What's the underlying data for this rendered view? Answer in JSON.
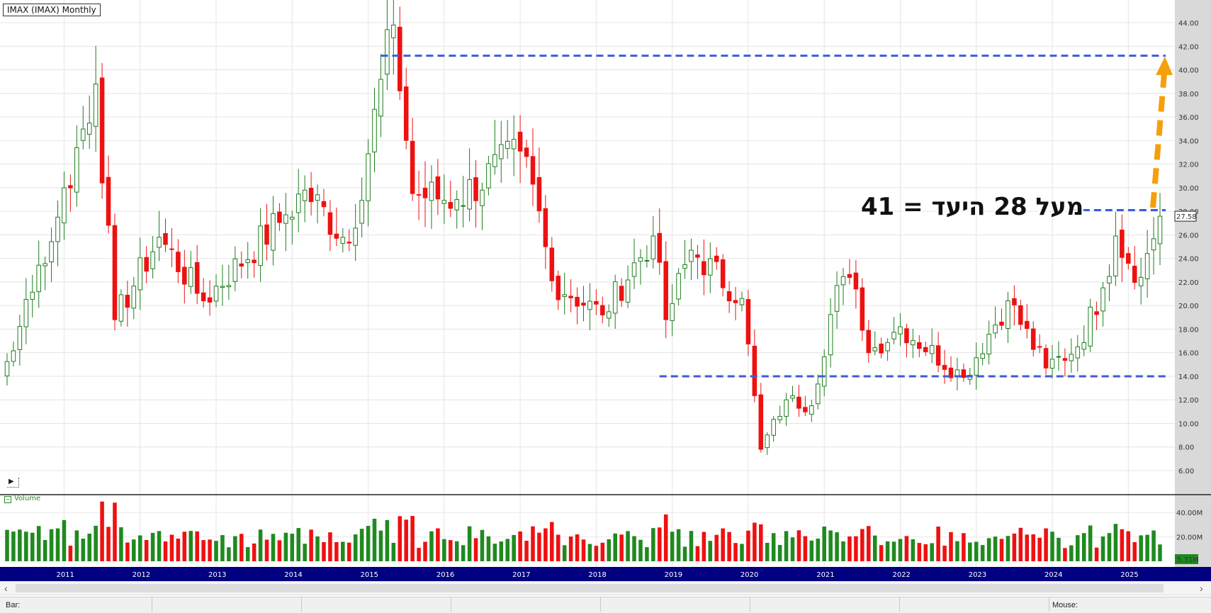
{
  "window": {
    "title": "IMAX (IMAX) Monthly",
    "volume_label": "Volume",
    "status_bar_label": "Bar:",
    "status_mouse_label": "Mouse:"
  },
  "annotation": {
    "text": "מעל 28 היעד = 41"
  },
  "colors": {
    "up": "#1e7d1e",
    "down": "#ee1111",
    "guide": "#3b5bdb",
    "target_arrow": "#f5a00a",
    "date_band": "#000080",
    "axis_panel": "#d9d9d9"
  },
  "chart_data": {
    "type": "candlestick",
    "interval": "monthly",
    "ylim": [
      6,
      45
    ],
    "y_ticks": [
      6,
      8,
      10,
      12,
      14,
      16,
      18,
      20,
      22,
      24,
      26,
      28,
      30,
      32,
      34,
      36,
      38,
      40,
      42,
      44
    ],
    "y_tick_labels": [
      "6.00",
      "8.00",
      "10.00",
      "12.00",
      "14.00",
      "16.00",
      "18.00",
      "20.00",
      "22.00",
      "24.00",
      "26.00",
      "28.00",
      "30.00",
      "32.00",
      "34.00",
      "36.00",
      "38.00",
      "40.00",
      "42.00",
      "44.00"
    ],
    "last_price": 27.58,
    "last_price_label": "27.58",
    "x_start": "2010-04",
    "x_end": "2025-06",
    "year_labels": [
      "2011",
      "2012",
      "2013",
      "2014",
      "2015",
      "2016",
      "2017",
      "2018",
      "2019",
      "2020",
      "2021",
      "2022",
      "2023",
      "2024",
      "2025"
    ],
    "key_prices": [
      {
        "date": "2010-12",
        "value": 27.5
      },
      {
        "date": "2011-06",
        "value": 38.8
      },
      {
        "date": "2011-09",
        "value": 18.8
      },
      {
        "date": "2012-04",
        "value": 25.8
      },
      {
        "date": "2012-11",
        "value": 20.4
      },
      {
        "date": "2013-12",
        "value": 27.7
      },
      {
        "date": "2014-03",
        "value": 29.8
      },
      {
        "date": "2014-10",
        "value": 25.3
      },
      {
        "date": "2015-05",
        "value": 43.8
      },
      {
        "date": "2015-08",
        "value": 29.5
      },
      {
        "date": "2016-03",
        "value": 29.0
      },
      {
        "date": "2017-01",
        "value": 33.1
      },
      {
        "date": "2017-03",
        "value": 30.3
      },
      {
        "date": "2017-06",
        "value": 22.1
      },
      {
        "date": "2018-02",
        "value": 19.2
      },
      {
        "date": "2018-10",
        "value": 25.9
      },
      {
        "date": "2018-12",
        "value": 18.8
      },
      {
        "date": "2019-04",
        "value": 24.7
      },
      {
        "date": "2019-12",
        "value": 20.6
      },
      {
        "date": "2020-03",
        "value": 7.8
      },
      {
        "date": "2020-07",
        "value": 12.0
      },
      {
        "date": "2020-11",
        "value": 11.5
      },
      {
        "date": "2021-03",
        "value": 21.7
      },
      {
        "date": "2021-06",
        "value": 21.4
      },
      {
        "date": "2021-08",
        "value": 16.0
      },
      {
        "date": "2022-01",
        "value": 18.2
      },
      {
        "date": "2022-11",
        "value": 13.9
      },
      {
        "date": "2023-06",
        "value": 20.4
      },
      {
        "date": "2023-12",
        "value": 14.7
      },
      {
        "date": "2024-05",
        "value": 16.5
      },
      {
        "date": "2024-09",
        "value": 21.5
      },
      {
        "date": "2024-11",
        "value": 25.9
      },
      {
        "date": "2025-03",
        "value": 22.4
      },
      {
        "date": "2025-06",
        "value": 27.58
      }
    ],
    "volume_ticks": [
      20,
      40
    ],
    "volume_tick_labels": [
      "20.00M",
      "40.00M"
    ],
    "volume_last_label": "5.31M",
    "volume_max": 50,
    "volume_last": 5.31,
    "guide_lines": [
      {
        "level": 41.2,
        "from": "2015-03",
        "to": "2025-06"
      },
      {
        "level": 14.0,
        "from": "2018-11",
        "to": "2025-06"
      },
      {
        "level": 28.1,
        "from": "2024-04",
        "to": "2025-06"
      }
    ],
    "target_arrow": {
      "date": "2025-06",
      "from": 28.3,
      "to": 41
    }
  }
}
